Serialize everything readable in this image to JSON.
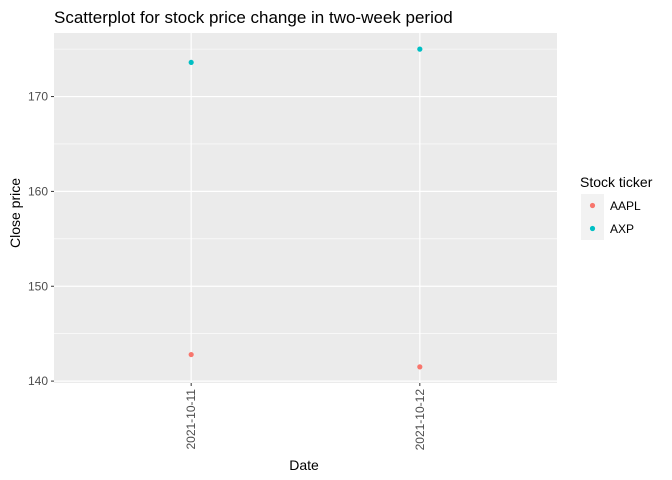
{
  "chart_data": {
    "type": "scatter",
    "title": "Scatterplot for stock price change in two-week period",
    "xlabel": "Date",
    "ylabel": "Close price",
    "x_categories": [
      "2021-10-11",
      "2021-10-12"
    ],
    "y_ticks": [
      140,
      150,
      160,
      170
    ],
    "ylim": [
      139.8,
      176.7
    ],
    "grid": true,
    "legend": {
      "title": "Stock ticker",
      "position": "right",
      "entries": [
        "AAPL",
        "AXP"
      ]
    },
    "series": [
      {
        "name": "AAPL",
        "color": "#f8766d",
        "x": [
          "2021-10-11",
          "2021-10-12"
        ],
        "y": [
          142.8,
          141.5
        ]
      },
      {
        "name": "AXP",
        "color": "#00bfc4",
        "x": [
          "2021-10-11",
          "2021-10-12"
        ],
        "y": [
          173.6,
          175.0
        ]
      }
    ]
  }
}
